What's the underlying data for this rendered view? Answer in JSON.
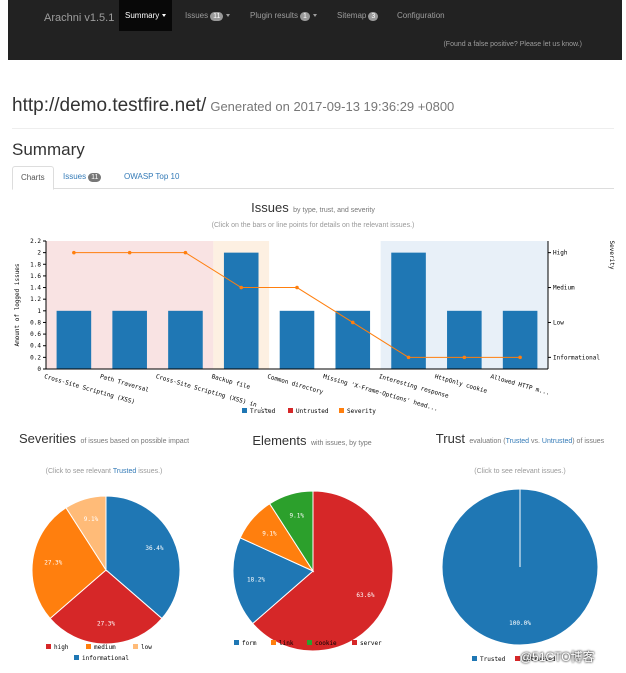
{
  "navbar": {
    "brand": "Arachni v1.5.1",
    "items": [
      {
        "label": "Summary",
        "badge": "",
        "caret": true,
        "active": true
      },
      {
        "label": "Issues",
        "badge": "11",
        "caret": true,
        "active": false
      },
      {
        "label": "Plugin results",
        "badge": "1",
        "caret": true,
        "active": false
      },
      {
        "label": "Sitemap",
        "badge": "3",
        "caret": false,
        "active": false
      },
      {
        "label": "Configuration",
        "badge": "",
        "caret": false,
        "active": false
      }
    ],
    "false_positive_link": "(Found a false positive? Please let us know.)"
  },
  "header": {
    "site": "http://demo.testfire.net/",
    "generated": "Generated on 2017-09-13 19:36:29 +0800"
  },
  "summary_title": "Summary",
  "tabs": [
    {
      "label": "Charts",
      "badge": "",
      "active": true
    },
    {
      "label": "Issues",
      "badge": "11",
      "active": false
    },
    {
      "label": "OWASP Top 10",
      "badge": "",
      "active": false
    }
  ],
  "issues_chart": {
    "title": "Issues",
    "subtitle": "by type, trust, and severity",
    "hint": "(Click on the bars or line points for details on the relevant issues.)",
    "y_label_left": "Amount of logged issues",
    "y_label_right": "Severity",
    "legend": [
      "Trusted",
      "Untrusted",
      "Severity"
    ],
    "colors": {
      "trusted": "#1f77b4",
      "untrusted": "#d62728",
      "severity": "#ff7f0e"
    }
  },
  "severities_chart": {
    "title": "Severities",
    "subtitle": "of issues based on possible impact",
    "hint": "(Click to see relevant Trusted issues.)",
    "legend": [
      "high",
      "medium",
      "low",
      "informational"
    ]
  },
  "elements_chart": {
    "title": "Elements",
    "subtitle": "with issues, by type",
    "legend": [
      "form",
      "link",
      "cookie",
      "server"
    ]
  },
  "trust_chart": {
    "title": "Trust",
    "subtitle_pre": "evaluation (",
    "subtitle_trusted": "Trusted",
    "subtitle_mid": " vs. ",
    "subtitle_untrusted": "Untrusted",
    "subtitle_post": ") of issues",
    "hint": "(Click to see relevant issues.)",
    "legend": [
      "Trusted",
      "Untrusted"
    ]
  },
  "chart_data": [
    {
      "type": "bar",
      "title": "Issues",
      "categories": [
        "Cross-Site Scripting (XSS)",
        "Path Traversal",
        "Cross-Site Scripting (XSS) in ...",
        "Backup file",
        "Common directory",
        "Missing 'X-Frame-Options' head...",
        "Interesting response",
        "HttpOnly cookie",
        "Allowed HTTP m..."
      ],
      "series": [
        {
          "name": "Trusted",
          "values": [
            1,
            1,
            1,
            2,
            1,
            1,
            2,
            1,
            1
          ],
          "color": "#1f77b4"
        },
        {
          "name": "Untrusted",
          "values": [
            0,
            0,
            0,
            0,
            0,
            0,
            0,
            0,
            0
          ],
          "color": "#d62728"
        }
      ],
      "severity_line": {
        "name": "Severity",
        "values": [
          "High",
          "High",
          "High",
          "Medium",
          "Medium",
          "Low",
          "Informational",
          "Informational",
          "Informational"
        ],
        "color": "#ff7f0e"
      },
      "ylim": [
        0,
        2.2
      ],
      "yticks": [
        "0",
        "0.2",
        "0.4",
        "0.6",
        "0.8",
        "1",
        "1.2",
        "1.4",
        "1.6",
        "1.8",
        "2",
        "2.2"
      ],
      "y2ticks": [
        "High",
        "Medium",
        "Low",
        "Informational"
      ],
      "ylabel": "Amount of logged issues",
      "y2label": "Severity",
      "bands": [
        {
          "severity": "high",
          "from": 0,
          "to": 2,
          "color": "#f9e3e3"
        },
        {
          "severity": "medium",
          "from": 3,
          "to": 3,
          "color": "#fdf0e2"
        },
        {
          "severity": "informational",
          "from": 6,
          "to": 8,
          "color": "#e8f0f8"
        }
      ]
    },
    {
      "type": "pie",
      "title": "Severities",
      "slices": [
        {
          "label": "informational",
          "value": 36.4,
          "text": "36.4%",
          "color": "#1f77b4"
        },
        {
          "label": "high",
          "value": 27.3,
          "text": "27.3%",
          "color": "#d62728"
        },
        {
          "label": "medium",
          "value": 27.3,
          "text": "27.3%",
          "color": "#ff7f0e"
        },
        {
          "label": "low",
          "value": 9.1,
          "text": "9.1%",
          "color": "#ffbb78"
        }
      ]
    },
    {
      "type": "pie",
      "title": "Elements",
      "slices": [
        {
          "label": "server",
          "value": 63.6,
          "text": "63.6%",
          "color": "#d62728"
        },
        {
          "label": "form",
          "value": 18.2,
          "text": "18.2%",
          "color": "#1f77b4"
        },
        {
          "label": "link",
          "value": 9.1,
          "text": "9.1%",
          "color": "#ff7f0e"
        },
        {
          "label": "cookie",
          "value": 9.1,
          "text": "9.1%",
          "color": "#2ca02c"
        }
      ]
    },
    {
      "type": "pie",
      "title": "Trust",
      "slices": [
        {
          "label": "Trusted",
          "value": 100,
          "text": "100.0%",
          "color": "#1f77b4"
        },
        {
          "label": "Untrusted",
          "value": 0,
          "text": "",
          "color": "#d62728"
        }
      ]
    }
  ],
  "watermark": "@51CTO博客"
}
